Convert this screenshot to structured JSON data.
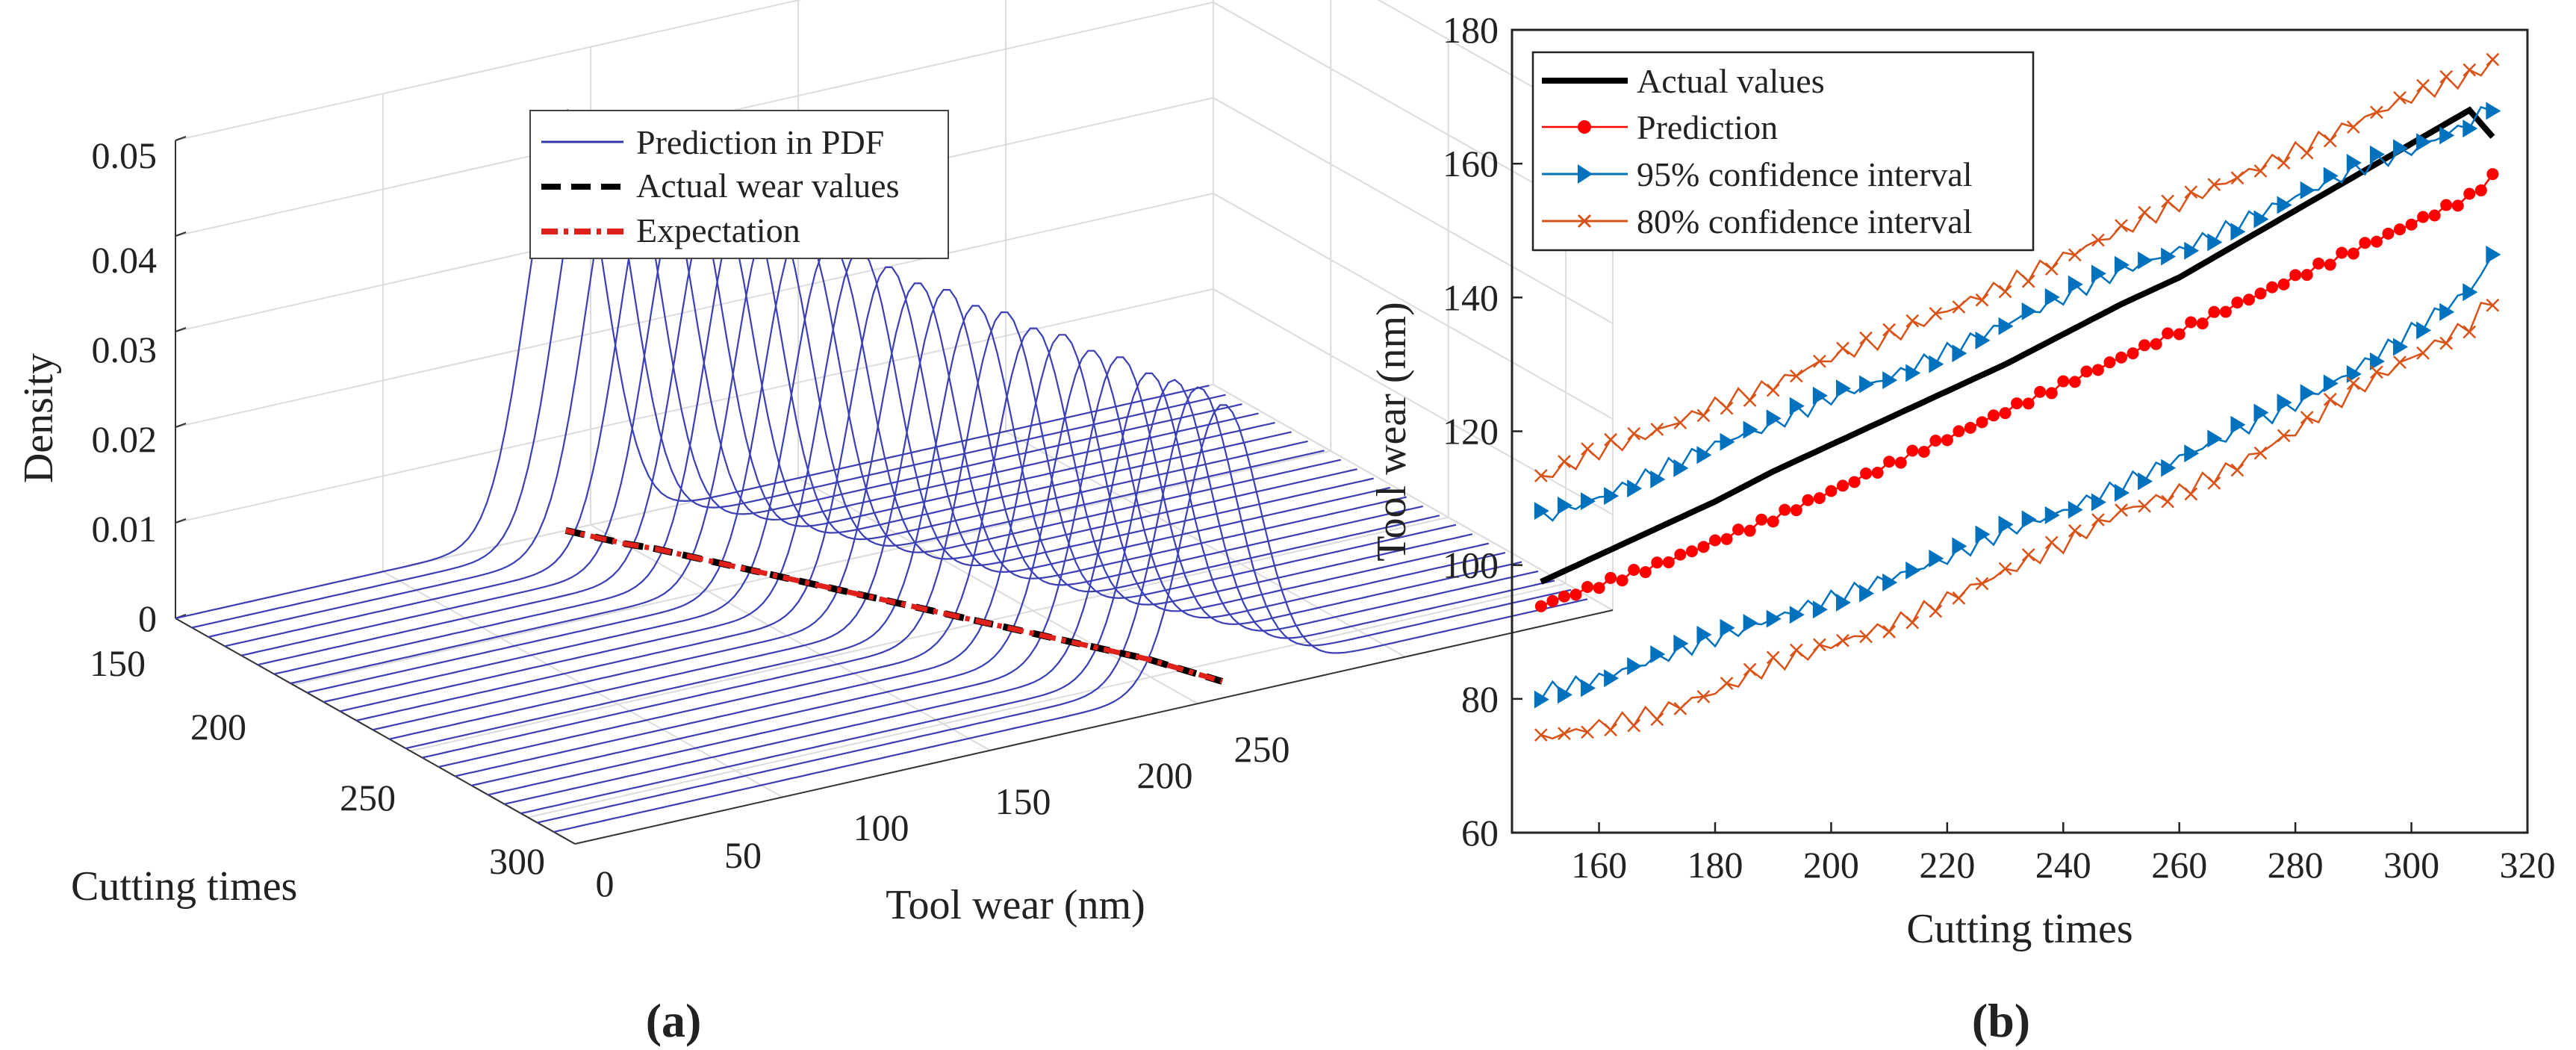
{
  "chart_data": [
    {
      "panel": "(a)",
      "type": "3d-line",
      "zlabel": "Density",
      "xlabel": "Tool wear (nm)",
      "ylabel": "Cutting times",
      "z_ticks": [
        "0",
        "0.01",
        "0.02",
        "0.03",
        "0.04",
        "0.05"
      ],
      "y_ticks": [
        "150",
        "200",
        "250",
        "300"
      ],
      "x_ticks": [
        "0",
        "50",
        "100",
        "150",
        "200",
        "250"
      ],
      "zlim": [
        0,
        0.05
      ],
      "xlim": [
        0,
        250
      ],
      "ylim": [
        150,
        320
      ],
      "grid": true,
      "legend": [
        "Prediction in PDF",
        "Actual wear values",
        "Expectation"
      ],
      "legend_position": "top-right",
      "curves": {
        "cutting_times": [
          150,
          157,
          164,
          171,
          178,
          185,
          192,
          199,
          206,
          213,
          220,
          227,
          234,
          241,
          248,
          255,
          262,
          269,
          276,
          283,
          290,
          297,
          304,
          311
        ],
        "mean_wear": [
          94,
          97,
          100,
          104,
          107,
          110,
          113,
          116,
          119,
          122,
          125,
          128,
          131,
          134,
          137,
          140,
          143,
          146,
          149,
          152,
          155,
          157,
          159,
          161
        ],
        "peak_density": [
          0.044,
          0.043,
          0.042,
          0.041,
          0.04,
          0.039,
          0.039,
          0.038,
          0.037,
          0.036,
          0.036,
          0.035,
          0.034,
          0.034,
          0.033,
          0.033,
          0.032,
          0.032,
          0.031,
          0.031,
          0.03,
          0.03,
          0.03,
          0.029
        ],
        "sigma": 9
      }
    },
    {
      "panel": "(b)",
      "type": "line",
      "xlabel": "Cutting times",
      "ylabel": "Tool wear (nm)",
      "xlim": [
        145,
        320
      ],
      "ylim": [
        60,
        180
      ],
      "x_ticks": [
        "160",
        "180",
        "200",
        "220",
        "240",
        "260",
        "280",
        "300",
        "320"
      ],
      "y_ticks": [
        "60",
        "80",
        "100",
        "120",
        "140",
        "160",
        "180"
      ],
      "legend_position": "top-left",
      "x": [
        150,
        160,
        170,
        180,
        190,
        200,
        210,
        220,
        230,
        240,
        250,
        260,
        270,
        280,
        290,
        300,
        310,
        314
      ],
      "series": [
        {
          "name": "Actual values",
          "color": "#000000",
          "values": [
            97.5,
            101.5,
            105.5,
            109.5,
            114,
            118,
            122,
            126,
            130,
            134.5,
            139,
            143,
            148,
            153,
            158,
            163,
            168,
            164
          ]
        },
        {
          "name": "Prediction",
          "color": "#ff0000",
          "values": [
            94,
            97,
            100,
            103.5,
            107,
            111,
            115,
            119,
            123,
            127,
            131,
            135,
            139,
            143,
            147,
            151,
            155,
            158
          ]
        },
        {
          "name": "95% confidence interval",
          "color": "#0072bd",
          "values": [
            107,
            110,
            114,
            118,
            121,
            125,
            128,
            132,
            136,
            140,
            144,
            147,
            151,
            155,
            159,
            162,
            166,
            169
          ]
        },
        {
          "name": "95% confidence interval lower",
          "color": "#0072bd",
          "values": [
            81,
            83,
            86,
            89,
            92,
            95,
            98,
            101,
            105,
            108,
            112,
            116,
            120,
            124,
            129,
            135,
            141,
            146
          ]
        },
        {
          "name": "80% confidence interval",
          "color": "#d95319",
          "values": [
            113,
            117,
            120,
            124,
            127,
            131,
            134,
            138,
            142,
            146,
            150,
            154,
            158,
            162,
            166,
            170,
            173,
            175
          ]
        },
        {
          "name": "80% confidence interval lower",
          "color": "#d95319",
          "values": [
            74,
            76,
            78,
            81,
            85,
            88,
            91,
            95,
            99,
            103,
            108,
            111,
            115,
            120,
            126,
            131,
            136,
            140
          ]
        }
      ],
      "legend": [
        "Actual values",
        "Prediction",
        "95% confidence interval",
        "80% confidence interval"
      ]
    }
  ]
}
